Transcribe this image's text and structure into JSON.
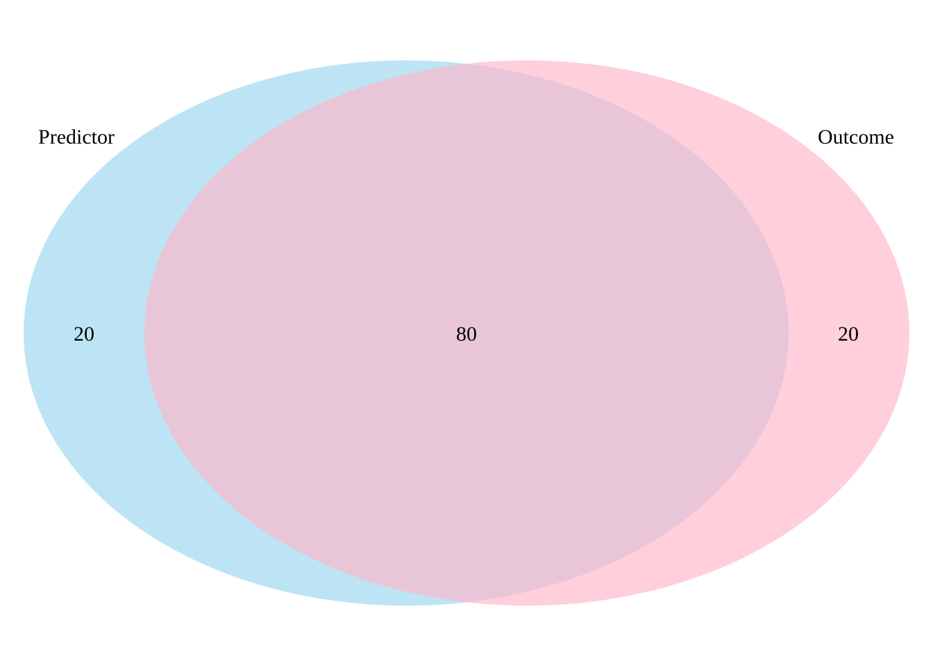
{
  "venn": {
    "sets": [
      {
        "name": "Predictor",
        "color": "#87CEEB"
      },
      {
        "name": "Outcome",
        "color": "#FFB6C8"
      }
    ],
    "counts": {
      "predictor_only": "20",
      "intersection": "80",
      "outcome_only": "20"
    }
  }
}
